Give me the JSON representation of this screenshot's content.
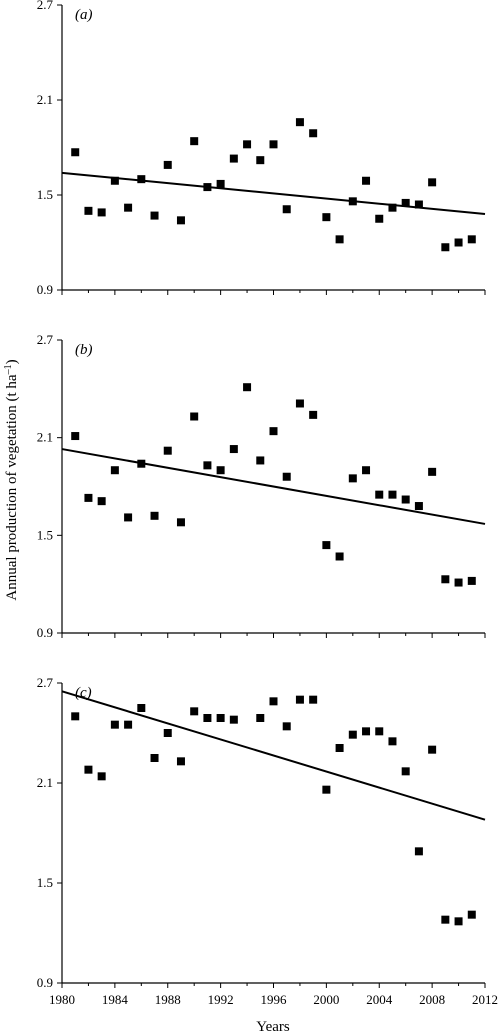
{
  "chart_data": [
    {
      "type": "scatter",
      "panel_label": "(a)",
      "x_range": [
        1980,
        2012
      ],
      "ylim": [
        0.9,
        2.7
      ],
      "yticks": [
        0.9,
        1.5,
        2.1,
        2.7
      ],
      "series": [
        {
          "x": [
            1981,
            1982,
            1983,
            1984,
            1985,
            1986,
            1987,
            1988,
            1989,
            1990,
            1991,
            1992,
            1993,
            1994,
            1995,
            1996,
            1997,
            1998,
            1999,
            2000,
            2001,
            2002,
            2003,
            2004,
            2005,
            2006,
            2007,
            2008,
            2009,
            2010,
            2011
          ],
          "y": [
            1.77,
            1.4,
            1.39,
            1.59,
            1.42,
            1.6,
            1.37,
            1.69,
            1.34,
            1.84,
            1.55,
            1.57,
            1.73,
            1.82,
            1.72,
            1.82,
            1.41,
            1.96,
            1.89,
            1.36,
            1.22,
            1.46,
            1.59,
            1.35,
            1.42,
            1.45,
            1.44,
            1.58,
            1.17,
            1.2,
            1.22
          ]
        }
      ],
      "trend": {
        "x": [
          1980,
          2012
        ],
        "y": [
          1.64,
          1.38
        ]
      }
    },
    {
      "type": "scatter",
      "panel_label": "(b)",
      "x_range": [
        1980,
        2012
      ],
      "ylim": [
        0.9,
        2.7
      ],
      "yticks": [
        0.9,
        1.5,
        2.1,
        2.7
      ],
      "series": [
        {
          "x": [
            1981,
            1982,
            1983,
            1984,
            1985,
            1986,
            1987,
            1988,
            1989,
            1990,
            1991,
            1992,
            1993,
            1994,
            1995,
            1996,
            1997,
            1998,
            1999,
            2000,
            2001,
            2002,
            2003,
            2004,
            2005,
            2006,
            2007,
            2008,
            2009,
            2010,
            2011
          ],
          "y": [
            2.11,
            1.73,
            1.71,
            1.9,
            1.61,
            1.94,
            1.62,
            2.02,
            1.58,
            2.23,
            1.93,
            1.9,
            2.03,
            2.41,
            1.96,
            2.14,
            1.86,
            2.31,
            2.24,
            1.44,
            1.37,
            1.85,
            1.9,
            1.75,
            1.75,
            1.72,
            1.68,
            1.89,
            1.23,
            1.21,
            1.22
          ]
        }
      ],
      "trend": {
        "x": [
          1980,
          2012
        ],
        "y": [
          2.03,
          1.57
        ]
      }
    },
    {
      "type": "scatter",
      "panel_label": "(c)",
      "x_range": [
        1980,
        2012
      ],
      "ylim": [
        0.9,
        2.7
      ],
      "yticks": [
        0.9,
        1.5,
        2.1,
        2.7
      ],
      "xticks": [
        1980,
        1984,
        1988,
        1992,
        1996,
        2000,
        2004,
        2008,
        2012
      ],
      "series": [
        {
          "x": [
            1981,
            1982,
            1983,
            1984,
            1985,
            1986,
            1987,
            1988,
            1989,
            1990,
            1991,
            1992,
            1993,
            1995,
            1996,
            1997,
            1998,
            1999,
            2000,
            2001,
            2002,
            2003,
            2004,
            2005,
            2006,
            2007,
            2008,
            2009,
            2010,
            2011
          ],
          "y": [
            2.5,
            2.18,
            2.14,
            2.45,
            2.45,
            2.55,
            2.25,
            2.4,
            2.23,
            2.53,
            2.49,
            2.49,
            2.48,
            2.49,
            2.59,
            2.44,
            2.6,
            2.6,
            2.06,
            2.31,
            2.39,
            2.41,
            2.41,
            2.35,
            2.17,
            1.69,
            2.3,
            1.28,
            1.27,
            1.31
          ]
        }
      ],
      "trend": {
        "x": [
          1980,
          2012
        ],
        "y": [
          2.65,
          1.88
        ]
      }
    }
  ],
  "ylabel": "Annual production of vegetation (t ha",
  "ylabel_sup": "–1",
  "ylabel_close": ")",
  "xlabel": "Years"
}
